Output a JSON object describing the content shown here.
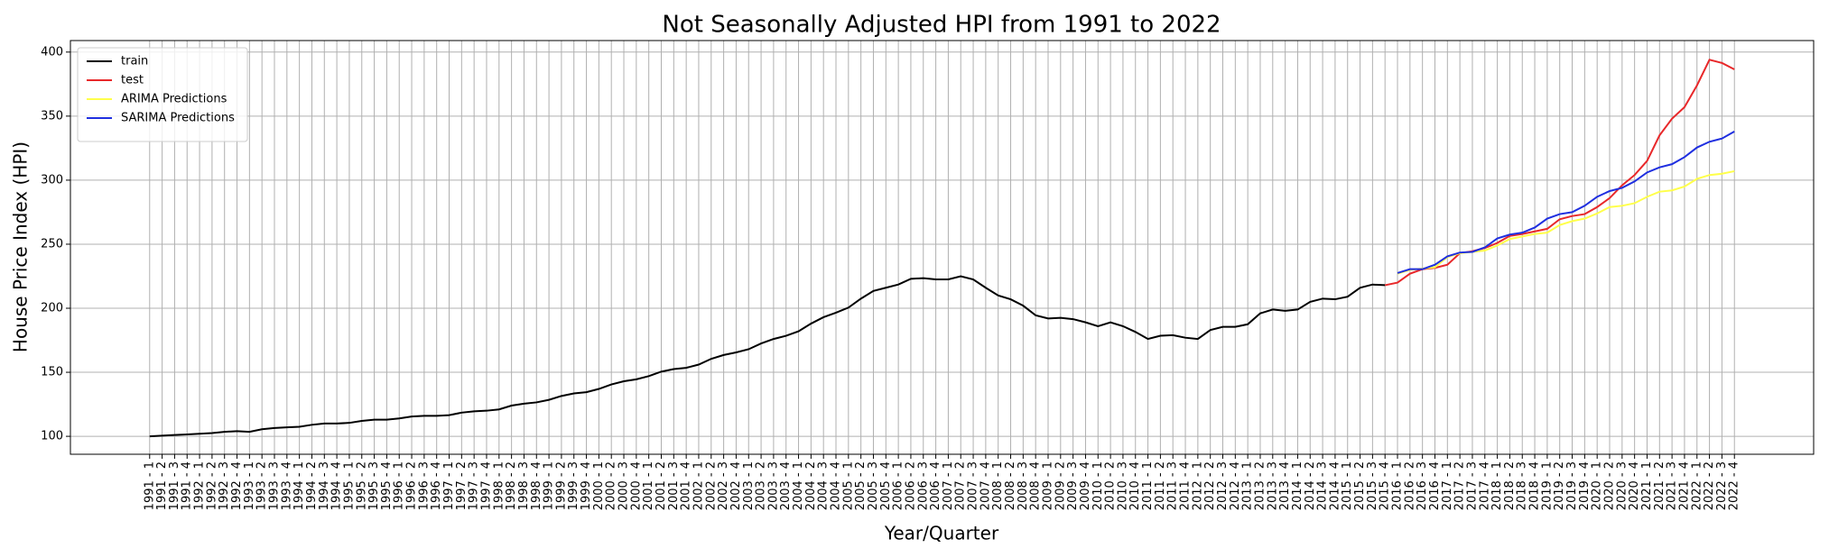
{
  "chart_data": {
    "type": "line",
    "title": "Not Seasonally Adjusted HPI from 1991 to 2022",
    "x_label": "Year/Quarter",
    "y_label": "House Price Index (HPI)",
    "categories": [
      "1991 - 1",
      "1991 - 2",
      "1991 - 3",
      "1991 - 4",
      "1992 - 1",
      "1992 - 2",
      "1992 - 3",
      "1992 - 4",
      "1993 - 1",
      "1993 - 2",
      "1993 - 3",
      "1993 - 4",
      "1994 - 1",
      "1994 - 2",
      "1994 - 3",
      "1994 - 4",
      "1995 - 1",
      "1995 - 2",
      "1995 - 3",
      "1995 - 4",
      "1996 - 1",
      "1996 - 2",
      "1996 - 3",
      "1996 - 4",
      "1997 - 1",
      "1997 - 2",
      "1997 - 3",
      "1997 - 4",
      "1998 - 1",
      "1998 - 2",
      "1998 - 3",
      "1998 - 4",
      "1999 - 1",
      "1999 - 2",
      "1999 - 3",
      "1999 - 4",
      "2000 - 1",
      "2000 - 2",
      "2000 - 3",
      "2000 - 4",
      "2001 - 1",
      "2001 - 2",
      "2001 - 3",
      "2001 - 4",
      "2002 - 1",
      "2002 - 2",
      "2002 - 3",
      "2002 - 4",
      "2003 - 1",
      "2003 - 2",
      "2003 - 3",
      "2003 - 4",
      "2004 - 1",
      "2004 - 2",
      "2004 - 3",
      "2004 - 4",
      "2005 - 1",
      "2005 - 2",
      "2005 - 3",
      "2005 - 4",
      "2006 - 1",
      "2006 - 2",
      "2006 - 3",
      "2006 - 4",
      "2007 - 1",
      "2007 - 2",
      "2007 - 3",
      "2007 - 4",
      "2008 - 1",
      "2008 - 2",
      "2008 - 3",
      "2008 - 4",
      "2009 - 1",
      "2009 - 2",
      "2009 - 3",
      "2009 - 4",
      "2010 - 1",
      "2010 - 2",
      "2010 - 3",
      "2010 - 4",
      "2011 - 1",
      "2011 - 2",
      "2011 - 3",
      "2011 - 4",
      "2012 - 1",
      "2012 - 2",
      "2012 - 3",
      "2012 - 4",
      "2013 - 1",
      "2013 - 2",
      "2013 - 3",
      "2013 - 4",
      "2014 - 1",
      "2014 - 2",
      "2014 - 3",
      "2014 - 4",
      "2015 - 1",
      "2015 - 2",
      "2015 - 3",
      "2015 - 4",
      "2016 - 1",
      "2016 - 2",
      "2016 - 3",
      "2016 - 4",
      "2017 - 1",
      "2017 - 2",
      "2017 - 3",
      "2017 - 4",
      "2018 - 1",
      "2018 - 2",
      "2018 - 3",
      "2018 - 4",
      "2019 - 1",
      "2019 - 2",
      "2019 - 3",
      "2019 - 4",
      "2020 - 1",
      "2020 - 2",
      "2020 - 3",
      "2020 - 4",
      "2021 - 1",
      "2021 - 2",
      "2021 - 3",
      "2021 - 4",
      "2022 - 1",
      "2022 - 2",
      "2022 - 3",
      "2022 - 4"
    ],
    "series": [
      {
        "name": "train",
        "color": "#000000",
        "values": [
          100,
          100.5,
          101,
          101.5,
          102,
          102.5,
          103.5,
          104,
          103.5,
          105.5,
          106.5,
          107,
          107.5,
          109,
          110,
          110,
          110.5,
          112,
          113,
          113,
          114,
          115.5,
          116,
          116,
          116.5,
          118.5,
          119.5,
          120,
          121,
          124,
          125.5,
          126.5,
          128.5,
          131.5,
          133.5,
          134.5,
          137,
          140.5,
          143,
          144.5,
          147,
          150.5,
          152.5,
          153.5,
          156,
          160.5,
          163.5,
          165.5,
          168,
          172.5,
          176,
          178.5,
          182,
          188,
          193,
          196.5,
          200.5,
          207.5,
          213.5,
          216,
          218.5,
          223,
          223.5,
          222.5,
          222.5,
          225,
          222.5,
          216,
          210,
          207,
          202,
          194.5,
          192,
          192.5,
          191.5,
          189,
          186,
          189,
          186,
          181.5,
          176,
          178.5,
          179,
          177,
          176,
          183,
          185.5,
          185.5,
          187.5,
          196,
          199,
          198,
          199,
          205,
          207.5,
          207,
          209,
          216,
          218.5,
          218,
          null,
          null,
          null,
          null,
          null,
          null,
          null,
          null,
          null,
          null,
          null,
          null,
          null,
          null,
          null,
          null,
          null,
          null,
          null,
          null,
          null,
          null,
          null,
          null,
          null,
          null,
          null,
          null
        ]
      },
      {
        "name": "test",
        "color": "#e8282a",
        "values": [
          null,
          null,
          null,
          null,
          null,
          null,
          null,
          null,
          null,
          null,
          null,
          null,
          null,
          null,
          null,
          null,
          null,
          null,
          null,
          null,
          null,
          null,
          null,
          null,
          null,
          null,
          null,
          null,
          null,
          null,
          null,
          null,
          null,
          null,
          null,
          null,
          null,
          null,
          null,
          null,
          null,
          null,
          null,
          null,
          null,
          null,
          null,
          null,
          null,
          null,
          null,
          null,
          null,
          null,
          null,
          null,
          null,
          null,
          null,
          null,
          null,
          null,
          null,
          null,
          null,
          null,
          null,
          null,
          null,
          null,
          null,
          null,
          null,
          null,
          null,
          null,
          null,
          null,
          null,
          null,
          null,
          null,
          null,
          null,
          null,
          null,
          null,
          null,
          null,
          null,
          null,
          null,
          null,
          null,
          null,
          null,
          null,
          null,
          null,
          218,
          220,
          227,
          230.5,
          231.5,
          234,
          243,
          244.5,
          247,
          251,
          256.5,
          258,
          260,
          262,
          269.5,
          272,
          273.5,
          279,
          286,
          296,
          304,
          315,
          335,
          348,
          357,
          374,
          394,
          391.5,
          386.5
        ]
      },
      {
        "name": "ARIMA Predictions",
        "color": "#ffff4a",
        "values": [
          null,
          null,
          null,
          null,
          null,
          null,
          null,
          null,
          null,
          null,
          null,
          null,
          null,
          null,
          null,
          null,
          null,
          null,
          null,
          null,
          null,
          null,
          null,
          null,
          null,
          null,
          null,
          null,
          null,
          null,
          null,
          null,
          null,
          null,
          null,
          null,
          null,
          null,
          null,
          null,
          null,
          null,
          null,
          null,
          null,
          null,
          null,
          null,
          null,
          null,
          null,
          null,
          null,
          null,
          null,
          null,
          null,
          null,
          null,
          null,
          null,
          null,
          null,
          null,
          null,
          null,
          null,
          null,
          null,
          null,
          null,
          null,
          null,
          null,
          null,
          null,
          null,
          null,
          null,
          null,
          null,
          null,
          null,
          null,
          null,
          null,
          null,
          null,
          null,
          null,
          null,
          null,
          null,
          null,
          null,
          null,
          null,
          null,
          null,
          null,
          227,
          230,
          231,
          232,
          240,
          243,
          244,
          245,
          249,
          254,
          256,
          258,
          259,
          265,
          268,
          270,
          274,
          279,
          280,
          282,
          287,
          291,
          292,
          295,
          301,
          304,
          305,
          307
        ]
      },
      {
        "name": "SARIMA Predictions",
        "color": "#1f2fe0",
        "values": [
          null,
          null,
          null,
          null,
          null,
          null,
          null,
          null,
          null,
          null,
          null,
          null,
          null,
          null,
          null,
          null,
          null,
          null,
          null,
          null,
          null,
          null,
          null,
          null,
          null,
          null,
          null,
          null,
          null,
          null,
          null,
          null,
          null,
          null,
          null,
          null,
          null,
          null,
          null,
          null,
          null,
          null,
          null,
          null,
          null,
          null,
          null,
          null,
          null,
          null,
          null,
          null,
          null,
          null,
          null,
          null,
          null,
          null,
          null,
          null,
          null,
          null,
          null,
          null,
          null,
          null,
          null,
          null,
          null,
          null,
          null,
          null,
          null,
          null,
          null,
          null,
          null,
          null,
          null,
          null,
          null,
          null,
          null,
          null,
          null,
          null,
          null,
          null,
          null,
          null,
          null,
          null,
          null,
          null,
          null,
          null,
          null,
          null,
          null,
          null,
          227.5,
          230.5,
          230.5,
          234,
          240.5,
          243.5,
          244,
          247.5,
          254.5,
          257.5,
          259,
          263,
          270,
          273.5,
          275,
          280,
          287,
          291.5,
          294,
          299,
          306,
          310,
          312.5,
          318,
          325.5,
          330,
          332.5,
          338
        ]
      }
    ],
    "ylim": [
      86,
      409
    ],
    "yticks": [
      100,
      150,
      200,
      250,
      300,
      350,
      400
    ],
    "grid": true,
    "legend": "upper left"
  }
}
